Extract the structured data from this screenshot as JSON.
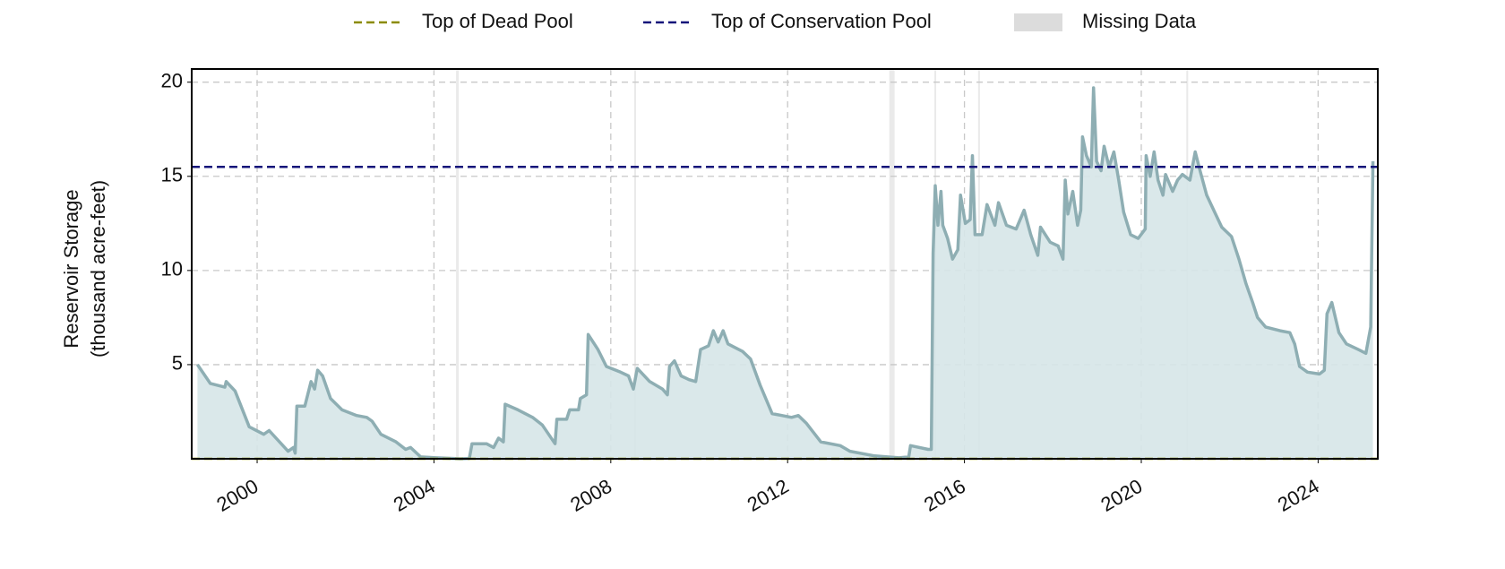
{
  "chart_data": {
    "type": "area",
    "ylabel": [
      "Reservoir Storage",
      "(thousand acre-feet)"
    ],
    "x": [
      1998.65,
      1998.94,
      1999.27,
      1999.3,
      1999.5,
      1999.82,
      2000.15,
      2000.27,
      2000.7,
      2000.82,
      2000.86,
      2000.9,
      2001.08,
      2001.22,
      2001.3,
      2001.37,
      2001.48,
      2001.66,
      2001.92,
      2002.25,
      2002.48,
      2002.6,
      2002.8,
      2003.14,
      2003.36,
      2003.47,
      2003.7,
      2004.05,
      2004.6,
      2004.8,
      2004.86,
      2005.19,
      2005.35,
      2005.46,
      2005.57,
      2005.61,
      2005.9,
      2006.23,
      2006.45,
      2006.74,
      2006.78,
      2007.0,
      2007.07,
      2007.27,
      2007.31,
      2007.45,
      2007.49,
      2007.71,
      2007.9,
      2008.22,
      2008.4,
      2008.51,
      2008.6,
      2008.88,
      2009.17,
      2009.28,
      2009.33,
      2009.44,
      2009.59,
      2009.77,
      2009.92,
      2010.03,
      2010.21,
      2010.32,
      2010.43,
      2010.54,
      2010.65,
      2010.98,
      2011.16,
      2011.38,
      2011.65,
      2011.87,
      2012.09,
      2012.24,
      2012.42,
      2012.75,
      2013.19,
      2013.41,
      2013.97,
      2014.52,
      2014.74,
      2014.78,
      2015.18,
      2015.25,
      2015.29,
      2015.34,
      2015.4,
      2015.47,
      2015.51,
      2015.62,
      2015.73,
      2015.85,
      2015.91,
      2016.02,
      2016.13,
      2016.18,
      2016.24,
      2016.4,
      2016.51,
      2016.69,
      2016.77,
      2016.95,
      2017.17,
      2017.35,
      2017.5,
      2017.66,
      2017.72,
      2017.94,
      2018.12,
      2018.23,
      2018.28,
      2018.34,
      2018.45,
      2018.56,
      2018.63,
      2018.67,
      2018.76,
      2018.87,
      2018.92,
      2018.99,
      2019.09,
      2019.16,
      2019.27,
      2019.38,
      2019.49,
      2019.6,
      2019.76,
      2019.93,
      2020.09,
      2020.11,
      2020.2,
      2020.29,
      2020.38,
      2020.49,
      2020.55,
      2020.71,
      2020.82,
      2020.93,
      2021.1,
      2021.22,
      2021.33,
      2021.48,
      2021.64,
      2021.82,
      2022.04,
      2022.21,
      2022.37,
      2022.52,
      2022.63,
      2022.81,
      2023.14,
      2023.36,
      2023.47,
      2023.58,
      2023.76,
      2024.03,
      2024.14,
      2024.2,
      2024.31,
      2024.47,
      2024.64,
      2024.91,
      2025.08,
      2025.19,
      2025.24
    ],
    "values": [
      5.0,
      4.0,
      3.8,
      4.1,
      3.6,
      1.7,
      1.3,
      1.5,
      0.4,
      0.6,
      0.3,
      2.8,
      2.8,
      4.1,
      3.7,
      4.7,
      4.4,
      3.2,
      2.6,
      2.3,
      2.2,
      2.0,
      1.3,
      0.9,
      0.5,
      0.6,
      0.1,
      0.05,
      0,
      0.02,
      0.8,
      0.8,
      0.6,
      1.1,
      0.9,
      2.9,
      2.6,
      2.2,
      1.8,
      0.8,
      2.1,
      2.1,
      2.6,
      2.6,
      3.2,
      3.4,
      6.6,
      5.8,
      4.9,
      4.6,
      4.4,
      3.7,
      4.8,
      4.1,
      3.7,
      3.4,
      4.9,
      5.2,
      4.4,
      4.2,
      4.1,
      5.8,
      6.0,
      6.8,
      6.2,
      6.8,
      6.1,
      5.7,
      5.3,
      3.9,
      2.4,
      2.3,
      2.2,
      2.3,
      1.9,
      0.9,
      0.7,
      0.4,
      0.15,
      0.05,
      0.1,
      0.7,
      0.5,
      0.5,
      10.9,
      14.5,
      12.4,
      14.2,
      12.4,
      11.7,
      10.6,
      11.1,
      14.0,
      12.5,
      12.7,
      16.1,
      11.9,
      11.9,
      13.5,
      12.4,
      13.6,
      12.4,
      12.2,
      13.2,
      11.9,
      10.8,
      12.3,
      11.5,
      11.3,
      10.6,
      14.8,
      13.0,
      14.2,
      12.4,
      13.2,
      17.1,
      16.1,
      15.5,
      19.7,
      15.8,
      15.3,
      16.6,
      15.5,
      16.3,
      14.8,
      13.1,
      11.9,
      11.7,
      12.2,
      16.1,
      15.0,
      16.3,
      14.8,
      14.0,
      15.1,
      14.2,
      14.8,
      15.1,
      14.8,
      16.3,
      15.3,
      14.0,
      13.2,
      12.3,
      11.8,
      10.6,
      9.3,
      8.3,
      7.5,
      7.0,
      6.8,
      6.7,
      6.1,
      4.9,
      4.6,
      4.5,
      4.7,
      7.7,
      8.3,
      6.7,
      6.1,
      5.8,
      5.6,
      7.0,
      15.8
    ],
    "color": "#8eaeb3",
    "fill_color": "#d6e6e8",
    "reference_lines": [
      {
        "name": "Top of Dead Pool",
        "value": 0,
        "color": "#8b8b00"
      },
      {
        "name": "Top of Conservation Pool",
        "value": 15.5,
        "color": "#15157a"
      }
    ],
    "missing_data": {
      "name": "Missing Data",
      "color": "#dcdcdc",
      "ranges": [
        [
          2004.5,
          2004.56
        ],
        [
          2008.53,
          2008.57
        ],
        [
          2014.3,
          2014.42
        ],
        [
          2015.32,
          2015.36
        ],
        [
          2016.31,
          2016.35
        ],
        [
          2021.02,
          2021.06
        ]
      ]
    },
    "xlim": [
      1998.52,
      2025.35
    ],
    "xticks": [
      2000,
      2004,
      2008,
      2012,
      2016,
      2020,
      2024
    ],
    "ylim": [
      0,
      20.7
    ],
    "yticks": [
      5,
      10,
      15,
      20
    ],
    "grid": true
  }
}
